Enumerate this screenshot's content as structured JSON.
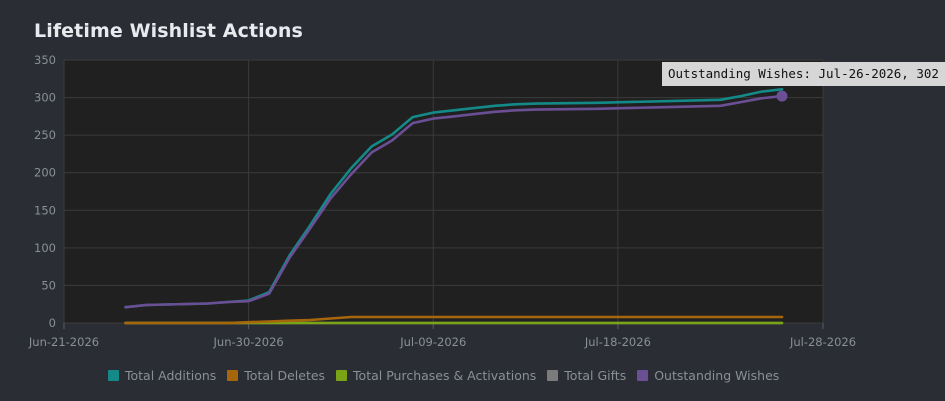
{
  "title": "Lifetime Wishlist Actions",
  "tooltip": "Outstanding Wishes: Jul-26-2026, 302",
  "colors": {
    "plot_bg": "#202020",
    "grid": "#3b3b3b",
    "Total Additions": "#138a87",
    "Total Deletes": "#a8660c",
    "Total Purchases & Activations": "#7aa316",
    "Total Gifts": "#7b7b7b",
    "Outstanding Wishes": "#6a4f95"
  },
  "chart_data": {
    "type": "line",
    "title": "Lifetime Wishlist Actions",
    "xlabel": "",
    "ylabel": "",
    "ylim": [
      0,
      350
    ],
    "yticks": [
      0,
      50,
      100,
      150,
      200,
      250,
      300,
      350
    ],
    "xlim": [
      "2026-06-21",
      "2026-07-28"
    ],
    "xticks": [
      {
        "date": "2026-06-21",
        "label": "Jun-21-2026"
      },
      {
        "date": "2026-06-30",
        "label": "Jun-30-2026"
      },
      {
        "date": "2026-07-09",
        "label": "Jul-09-2026"
      },
      {
        "date": "2026-07-18",
        "label": "Jul-18-2026"
      },
      {
        "date": "2026-07-28",
        "label": "Jul-28-2026"
      }
    ],
    "grid": true,
    "legend_position": "bottom",
    "x": [
      "2026-06-24",
      "2026-06-25",
      "2026-06-28",
      "2026-06-29",
      "2026-06-30",
      "2026-07-01",
      "2026-07-02",
      "2026-07-03",
      "2026-07-04",
      "2026-07-05",
      "2026-07-06",
      "2026-07-07",
      "2026-07-08",
      "2026-07-09",
      "2026-07-10",
      "2026-07-11",
      "2026-07-12",
      "2026-07-13",
      "2026-07-14",
      "2026-07-17",
      "2026-07-20",
      "2026-07-23",
      "2026-07-24",
      "2026-07-25",
      "2026-07-26"
    ],
    "series": [
      {
        "name": "Total Additions",
        "values": [
          21,
          24,
          26,
          28,
          30,
          41,
          90,
          130,
          172,
          206,
          235,
          251,
          274,
          280,
          283,
          286,
          289,
          291,
          292,
          293,
          295,
          297,
          302,
          308,
          311
        ]
      },
      {
        "name": "Total Deletes",
        "values": [
          0,
          0,
          0,
          0,
          1,
          2,
          3,
          4,
          6,
          8,
          8,
          8,
          8,
          8,
          8,
          8,
          8,
          8,
          8,
          8,
          8,
          8,
          8,
          8,
          8
        ]
      },
      {
        "name": "Total Purchases & Activations",
        "values": [
          0,
          0,
          0,
          0,
          0,
          0,
          0,
          0,
          0,
          0,
          0,
          0,
          0,
          0,
          0,
          0,
          0,
          0,
          0,
          0,
          0,
          0,
          0,
          0,
          0
        ]
      },
      {
        "name": "Total Gifts",
        "values": [
          0,
          0,
          0,
          0,
          0,
          0,
          0,
          0,
          0,
          0,
          0,
          0,
          0,
          0,
          0,
          0,
          0,
          0,
          0,
          0,
          0,
          0,
          0,
          0,
          0
        ]
      },
      {
        "name": "Outstanding Wishes",
        "values": [
          21,
          24,
          26,
          28,
          29,
          39,
          87,
          126,
          166,
          198,
          227,
          243,
          266,
          272,
          275,
          278,
          281,
          283,
          284,
          285,
          287,
          289,
          294,
          299,
          302
        ]
      }
    ]
  }
}
